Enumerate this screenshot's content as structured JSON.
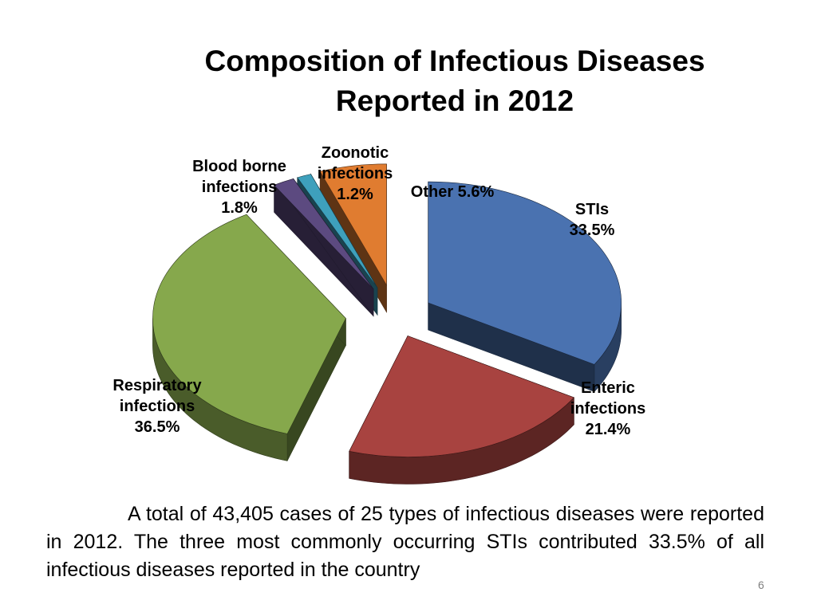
{
  "slide": {
    "title_line1": "Composition of Infectious Diseases",
    "title_line2": "Reported in 2012",
    "summary": "A total of 43,405 cases of 25 types of infectious diseases were reported in 2012. The three most commonly occurring STIs contributed 33.5% of all infectious diseases reported in the country",
    "page_number": "6"
  },
  "chart_data": {
    "type": "pie",
    "title": "Composition of Infectious Diseases Reported in 2012",
    "slices": [
      {
        "key": "stis",
        "lines": [
          "STIs",
          "33.5%"
        ],
        "value": 33.5,
        "color": "#4a72b0"
      },
      {
        "key": "enteric",
        "lines": [
          "Enteric",
          "infections",
          "21.4%"
        ],
        "value": 21.4,
        "color": "#a84340"
      },
      {
        "key": "respiratory",
        "lines": [
          "Respiratory",
          "infections",
          "36.5%"
        ],
        "value": 36.5,
        "color": "#86a84c"
      },
      {
        "key": "blood-borne",
        "lines": [
          "Blood borne",
          "infections",
          "1.8%"
        ],
        "value": 1.8,
        "color": "#5c4a80"
      },
      {
        "key": "zoonotic",
        "lines": [
          "Zoonotic",
          "infections",
          "1.2%"
        ],
        "value": 1.2,
        "color": "#3ea0bc"
      },
      {
        "key": "other",
        "lines": [
          "Other 5.6%"
        ],
        "value": 5.6,
        "color": "#e07c30"
      }
    ],
    "style": "3d-exploded"
  }
}
